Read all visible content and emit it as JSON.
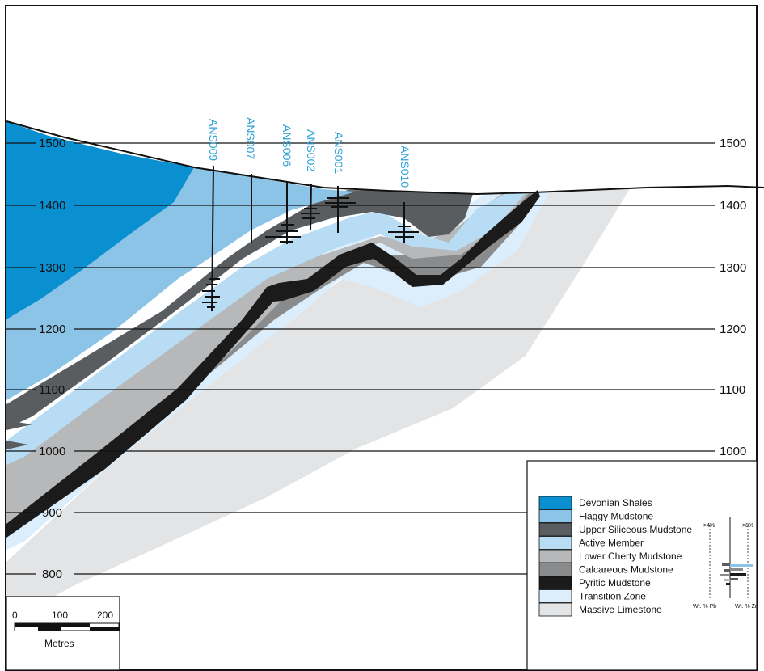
{
  "elevations": {
    "left": [
      "1500",
      "1400",
      "1300",
      "1200",
      "1100",
      "1000",
      "900",
      "800"
    ],
    "right": [
      "1500",
      "1400",
      "1300",
      "1200",
      "1100",
      "1000"
    ]
  },
  "drillholes": [
    "ANS009",
    "ANS007",
    "ANS006",
    "ANS002",
    "ANS001",
    "ANS010"
  ],
  "legend": [
    {
      "label": "Devonian Shales",
      "color": "#0a8fd1"
    },
    {
      "label": "Flaggy Mudstone",
      "color": "#8cc4e8"
    },
    {
      "label": "Upper Siliceous Mudstone",
      "color": "#5a5d60"
    },
    {
      "label": "Active Member",
      "color": "#b8dcf4"
    },
    {
      "label": "Lower Cherty Mudstone",
      "color": "#b7b8ba"
    },
    {
      "label": "Calcareous Mudstone",
      "color": "#8a8b8d"
    },
    {
      "label": "Pyritic Mudstone",
      "color": "#1b1b1b"
    },
    {
      "label": "Transition Zone",
      "color": "#dceefb"
    },
    {
      "label": "Massive Limestone",
      "color": "#e3e4e5"
    }
  ],
  "assay_key": {
    "pb_threshold": ">4%",
    "zn_threshold": ">8%",
    "pb_axis": "Wt. % Pb",
    "zn_axis": "Wt. % Zn"
  },
  "scale_bar": {
    "ticks": [
      "0",
      "100",
      "200"
    ],
    "unit": "Metres"
  }
}
